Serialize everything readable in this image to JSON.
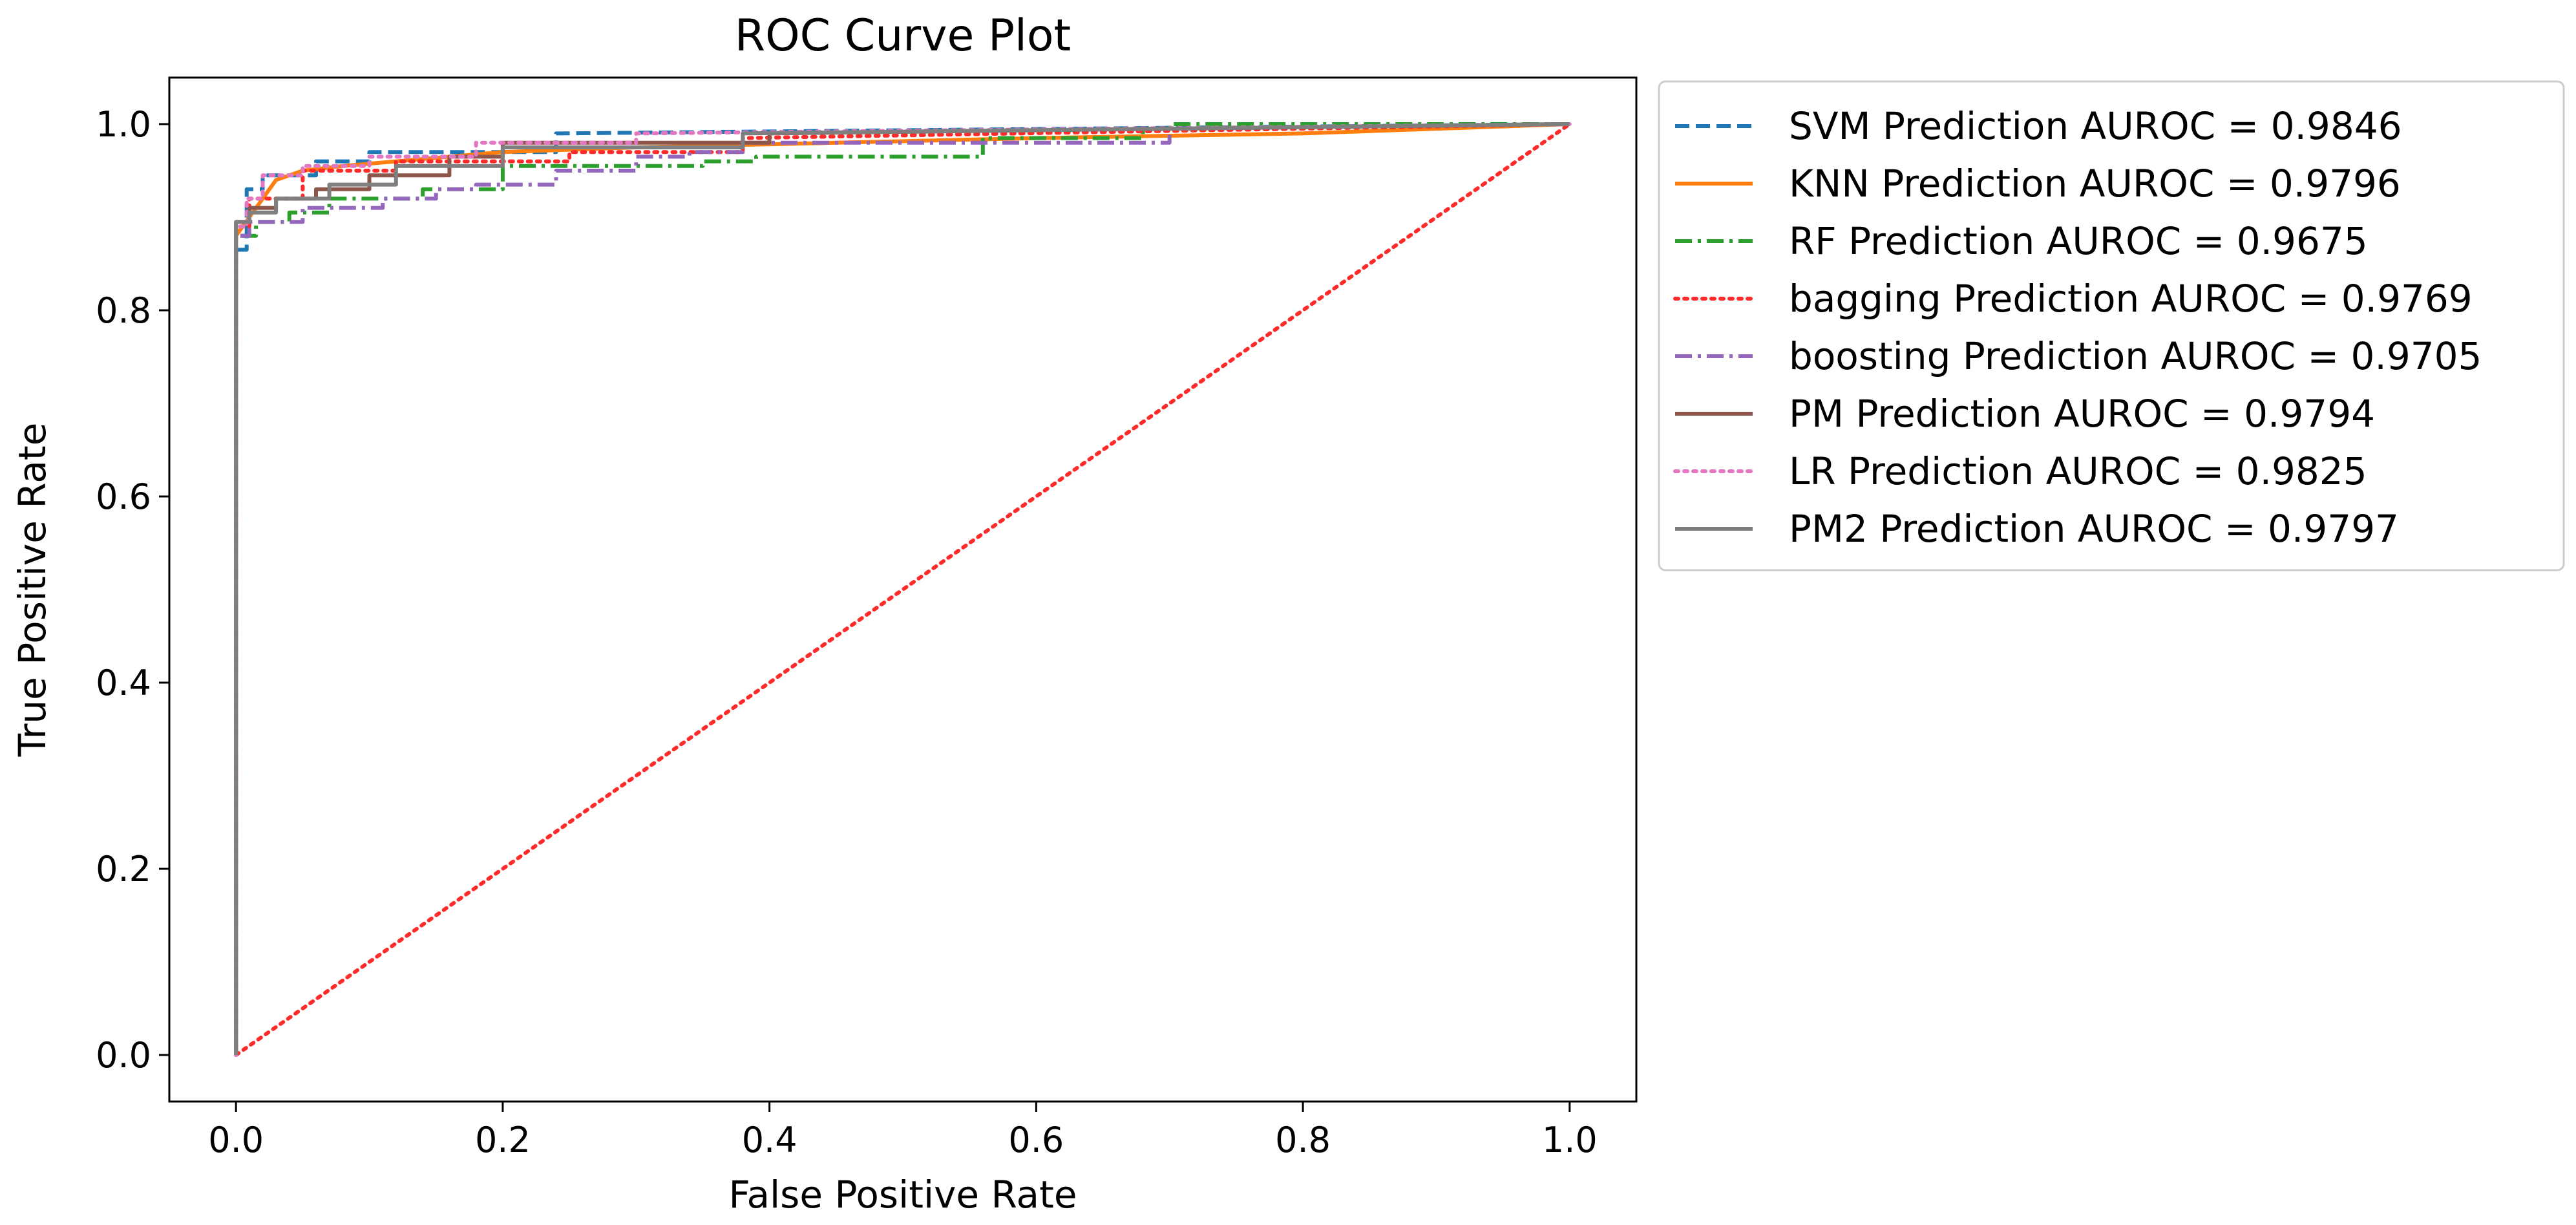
{
  "chart_data": {
    "type": "line",
    "title": "ROC Curve Plot",
    "xlabel": "False Positive Rate",
    "ylabel": "True Positive Rate",
    "xlim": [
      -0.05,
      1.05
    ],
    "ylim": [
      -0.05,
      1.05
    ],
    "xticks": [
      0.0,
      0.2,
      0.4,
      0.6,
      0.8,
      1.0
    ],
    "yticks": [
      0.0,
      0.2,
      0.4,
      0.6,
      0.8,
      1.0
    ],
    "xtick_labels": [
      "0.0",
      "0.2",
      "0.4",
      "0.6",
      "0.8",
      "1.0"
    ],
    "ytick_labels": [
      "0.0",
      "0.2",
      "0.4",
      "0.6",
      "0.8",
      "1.0"
    ],
    "grid": false,
    "legend_position": "outside-top-right",
    "series": [
      {
        "name": "SVM Prediction AUROC = 0.9846",
        "color": "#1f77b4",
        "dash": "dashed",
        "x": [
          0,
          0,
          0.008,
          0.008,
          0.02,
          0.02,
          0.06,
          0.06,
          0.1,
          0.1,
          0.24,
          0.24,
          1.0
        ],
        "y": [
          0,
          0.865,
          0.865,
          0.93,
          0.93,
          0.945,
          0.945,
          0.96,
          0.96,
          0.97,
          0.97,
          0.99,
          1.0
        ]
      },
      {
        "name": "KNN Prediction AUROC = 0.9796",
        "color": "#ff7f0e",
        "dash": "solid",
        "x": [
          0,
          0,
          0.01,
          0.02,
          0.03,
          0.05,
          0.08,
          0.12,
          0.2,
          0.3,
          0.45,
          0.6,
          0.8,
          1.0
        ],
        "y": [
          0,
          0.88,
          0.9,
          0.92,
          0.94,
          0.95,
          0.955,
          0.96,
          0.97,
          0.975,
          0.98,
          0.985,
          0.99,
          1.0
        ]
      },
      {
        "name": "RF Prediction AUROC = 0.9675",
        "color": "#2ca02c",
        "dash": "dashdot",
        "x": [
          0,
          0,
          0.015,
          0.015,
          0.04,
          0.04,
          0.07,
          0.07,
          0.14,
          0.14,
          0.2,
          0.2,
          0.35,
          0.35,
          0.39,
          0.39,
          0.56,
          0.56,
          0.68,
          0.68,
          0.7,
          0.7,
          1.0
        ],
        "y": [
          0,
          0.88,
          0.88,
          0.895,
          0.895,
          0.905,
          0.905,
          0.92,
          0.92,
          0.93,
          0.93,
          0.955,
          0.955,
          0.96,
          0.96,
          0.965,
          0.965,
          0.985,
          0.985,
          0.995,
          0.995,
          1.0,
          1.0
        ]
      },
      {
        "name": "bagging Prediction AUROC = 0.9769",
        "color": "#ff2a2a",
        "dash": "dotted",
        "x": [
          0,
          0,
          0.01,
          0.01,
          0.05,
          0.05,
          0.12,
          0.12,
          0.25,
          0.25,
          0.38,
          0.38,
          1.0
        ],
        "y": [
          0,
          0.89,
          0.89,
          0.92,
          0.92,
          0.95,
          0.95,
          0.96,
          0.96,
          0.97,
          0.97,
          0.985,
          1.0
        ],
        "diagonal": {
          "x": [
            0,
            1
          ],
          "y": [
            0,
            1
          ]
        }
      },
      {
        "name": "boosting Prediction AUROC = 0.9705",
        "color": "#9467bd",
        "dash": "dashdot",
        "x": [
          0,
          0,
          0.01,
          0.01,
          0.05,
          0.05,
          0.11,
          0.11,
          0.15,
          0.15,
          0.18,
          0.18,
          0.24,
          0.24,
          0.3,
          0.3,
          0.34,
          0.34,
          0.38,
          0.38,
          0.7,
          0.7,
          1.0
        ],
        "y": [
          0,
          0.88,
          0.88,
          0.895,
          0.895,
          0.91,
          0.91,
          0.92,
          0.92,
          0.93,
          0.93,
          0.935,
          0.935,
          0.95,
          0.95,
          0.965,
          0.965,
          0.97,
          0.97,
          0.98,
          0.98,
          0.995,
          1.0
        ]
      },
      {
        "name": "PM Prediction AUROC = 0.9794",
        "color": "#8c564b",
        "dash": "solid",
        "x": [
          0,
          0,
          0.01,
          0.01,
          0.03,
          0.03,
          0.06,
          0.06,
          0.1,
          0.1,
          0.16,
          0.16,
          0.2,
          0.2,
          0.4,
          0.4,
          1.0
        ],
        "y": [
          0,
          0.895,
          0.895,
          0.91,
          0.91,
          0.92,
          0.92,
          0.93,
          0.93,
          0.945,
          0.945,
          0.965,
          0.965,
          0.98,
          0.98,
          0.99,
          1.0
        ]
      },
      {
        "name": "LR Prediction AUROC = 0.9825",
        "color": "#e377c2",
        "dash": "dotted",
        "x": [
          0,
          0,
          0.008,
          0.008,
          0.02,
          0.02,
          0.05,
          0.05,
          0.1,
          0.1,
          0.18,
          0.18,
          0.3,
          0.3,
          1.0
        ],
        "y": [
          0,
          0.89,
          0.89,
          0.92,
          0.92,
          0.945,
          0.945,
          0.955,
          0.955,
          0.965,
          0.965,
          0.98,
          0.98,
          0.99,
          1.0
        ]
      },
      {
        "name": "PM2 Prediction AUROC = 0.9797",
        "color": "#7f7f7f",
        "dash": "solid",
        "x": [
          0,
          0,
          0.01,
          0.01,
          0.03,
          0.03,
          0.07,
          0.07,
          0.12,
          0.12,
          0.2,
          0.2,
          0.38,
          0.38,
          1.0
        ],
        "y": [
          0,
          0.895,
          0.895,
          0.905,
          0.905,
          0.92,
          0.92,
          0.935,
          0.935,
          0.955,
          0.955,
          0.975,
          0.975,
          0.99,
          1.0
        ]
      }
    ]
  }
}
